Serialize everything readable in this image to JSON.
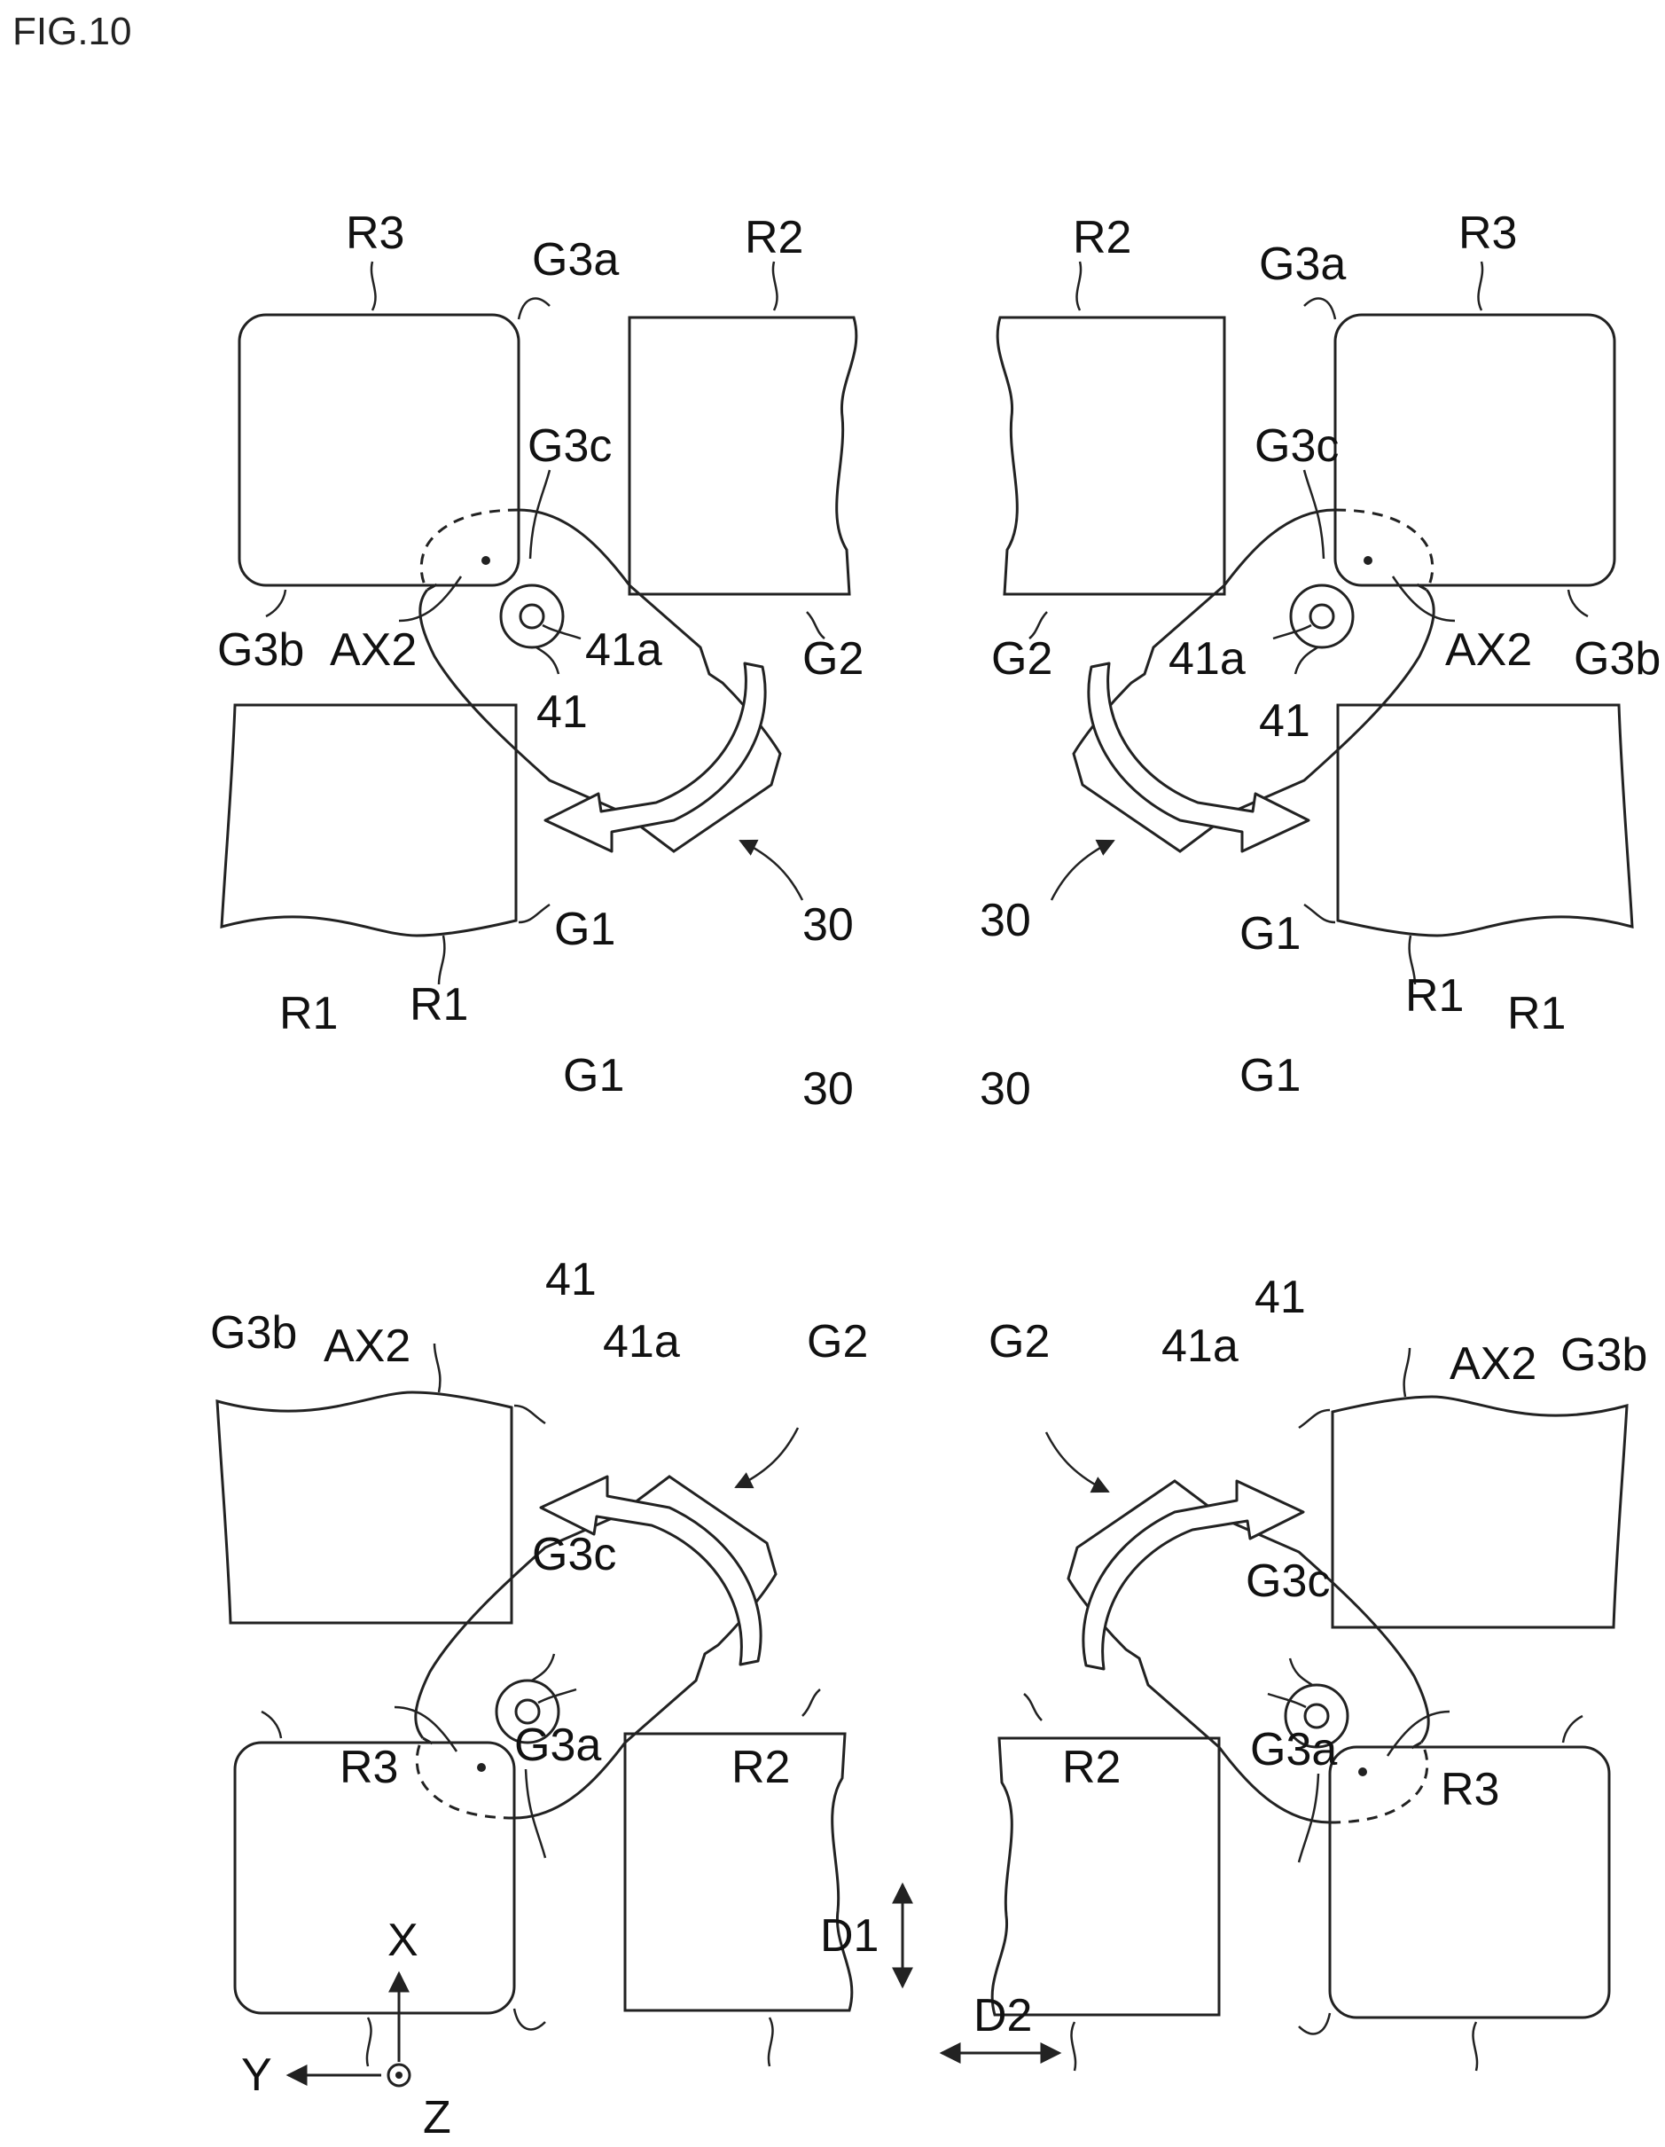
{
  "figure_label": "FIG.10",
  "panels": {
    "top_left": {
      "R3": "R3",
      "G3a": "G3a",
      "R2": "R2",
      "G3c": "G3c",
      "G3b": "G3b",
      "AX2": "AX2",
      "41a": "41a",
      "G2": "G2",
      "41": "41",
      "G1": "G1",
      "R1": "R1",
      "30": "30"
    },
    "top_right": {
      "R2": "R2",
      "G3a": "G3a",
      "R3": "R3",
      "G3c": "G3c",
      "G2": "G2",
      "41a": "41a",
      "AX2": "AX2",
      "G3b": "G3b",
      "41": "41",
      "30": "30",
      "G1": "G1",
      "R1": "R1"
    },
    "bottom_left": {
      "R1": "R1",
      "G1": "G1",
      "30": "30",
      "41": "41",
      "G3b": "G3b",
      "AX2": "AX2",
      "41a": "41a",
      "G2": "G2",
      "G3c": "G3c",
      "R3": "R3",
      "G3a": "G3a",
      "R2": "R2"
    },
    "bottom_right": {
      "30": "30",
      "G1": "G1",
      "R1": "R1",
      "41": "41",
      "G2": "G2",
      "41a": "41a",
      "AX2": "AX2",
      "G3b": "G3b",
      "G3c": "G3c",
      "R2": "R2",
      "G3a": "G3a",
      "R3": "R3"
    }
  },
  "axes": {
    "x": "X",
    "y": "Y",
    "z": "Z"
  },
  "directions": {
    "d1": "D1",
    "d2": "D2"
  }
}
